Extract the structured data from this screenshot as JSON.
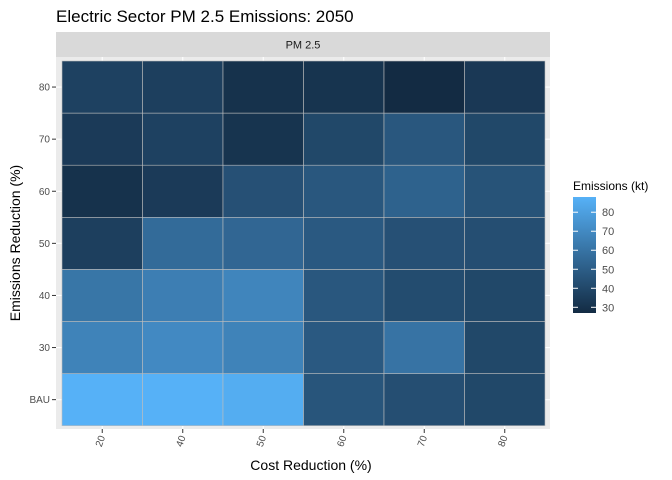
{
  "chart_data": {
    "type": "heatmap",
    "title": "Electric Sector PM 2.5 Emissions: 2050",
    "facet_label": "PM 2.5",
    "xlabel": "Cost Reduction (%)",
    "ylabel": "Emissions Reduction (%)",
    "x_categories": [
      "20",
      "40",
      "50",
      "60",
      "70",
      "80"
    ],
    "y_categories": [
      "BAU",
      "30",
      "40",
      "50",
      "60",
      "70",
      "80"
    ],
    "cells": [
      [
        88,
        88,
        86,
        46,
        43,
        40
      ],
      [
        67,
        70,
        67,
        48,
        60,
        40
      ],
      [
        61,
        65,
        68,
        47,
        42,
        40
      ],
      [
        36,
        56,
        54,
        48,
        44,
        43
      ],
      [
        30,
        34,
        44,
        47,
        52,
        45
      ],
      [
        34,
        37,
        31,
        40,
        47,
        40
      ],
      [
        37,
        36,
        30,
        31,
        27,
        33
      ]
    ],
    "legend": {
      "title": "Emissions (kt)",
      "ticks": [
        30,
        40,
        50,
        60,
        70,
        80
      ],
      "min": 27,
      "max": 88,
      "low_color": "#132B43",
      "high_color": "#56B1F7"
    },
    "panel_background": "#EBEBEB",
    "strip_background": "#D9D9D9",
    "grid_color": "#FFFFFF"
  }
}
